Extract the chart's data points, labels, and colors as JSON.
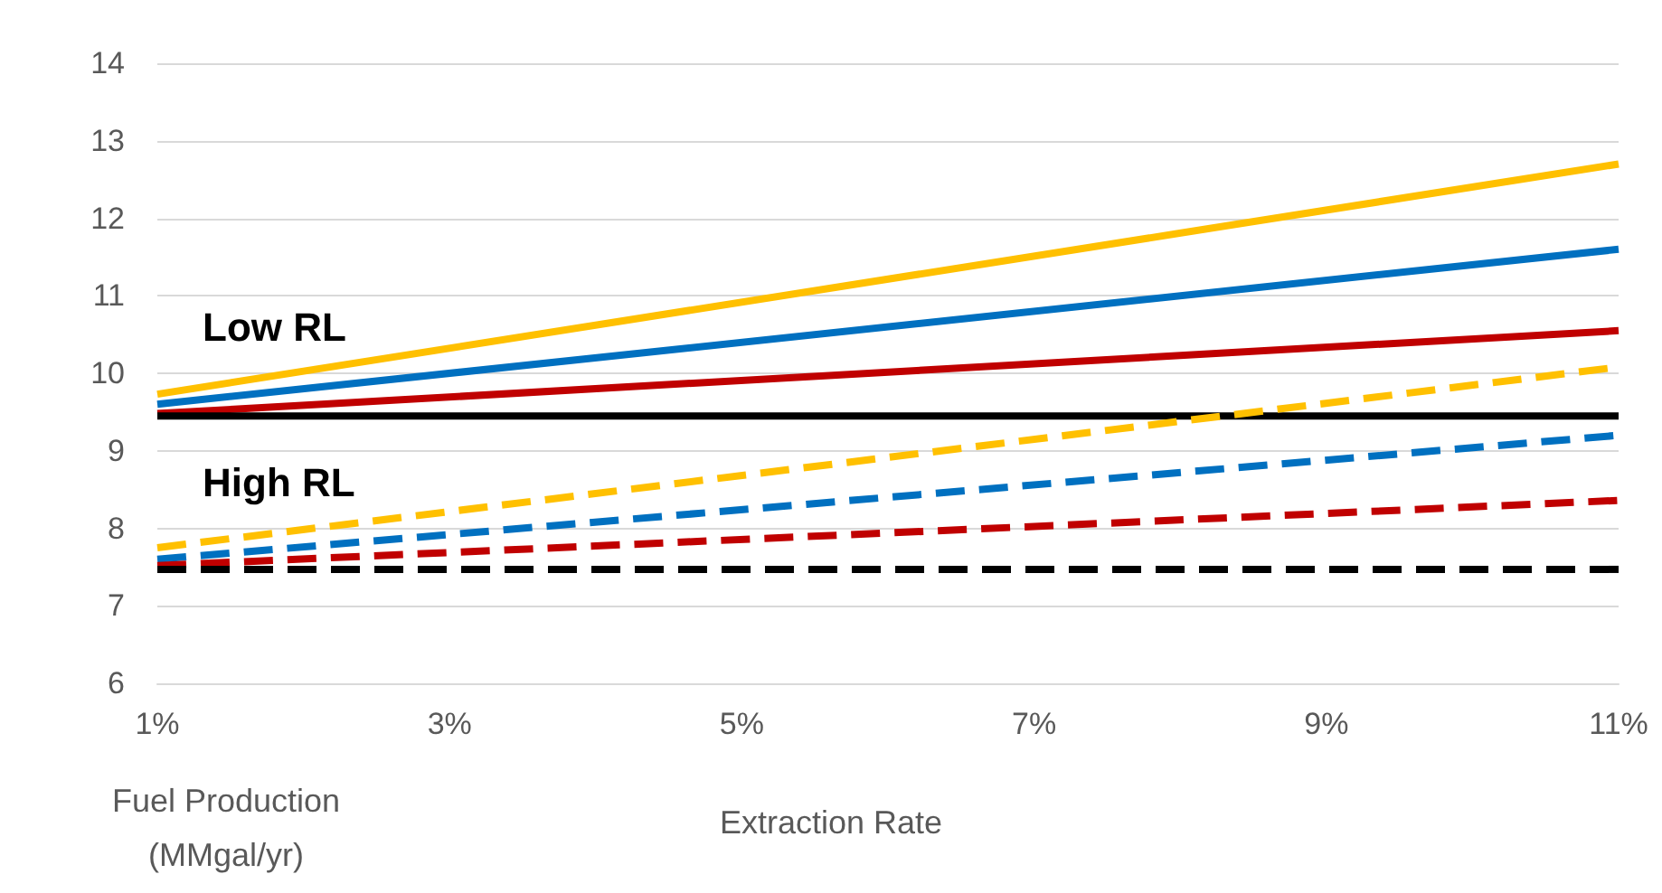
{
  "chart_data": {
    "type": "line",
    "xlabel": "Extraction Rate",
    "ylabel": "Fuel Production\n(MMgal/yr)",
    "x": [
      1,
      11
    ],
    "series": [
      {
        "color": "#ffc000",
        "values": [
          9.73,
          12.7
        ],
        "line_style": "solid"
      },
      {
        "color": "#0070c0",
        "values": [
          9.6,
          11.6
        ],
        "line_style": "solid"
      },
      {
        "color": "#c00000",
        "values": [
          9.48,
          10.55
        ],
        "line_style": "solid"
      },
      {
        "color": "#000000",
        "values": [
          9.45,
          9.45
        ],
        "line_style": "solid"
      },
      {
        "color": "#ffc000",
        "values": [
          7.75,
          10.08
        ],
        "line_style": "dashed"
      },
      {
        "color": "#0070c0",
        "values": [
          7.6,
          9.2
        ],
        "line_style": "dashed"
      },
      {
        "color": "#c00000",
        "values": [
          7.52,
          8.36
        ],
        "line_style": "dashed"
      },
      {
        "color": "#000000",
        "values": [
          7.47,
          7.47
        ],
        "line_style": "dashed"
      }
    ],
    "annotations": [
      "Low RL",
      "High RL"
    ],
    "xlim": [
      1,
      11
    ],
    "xticks": [
      {
        "value": 1,
        "label": "1%"
      },
      {
        "value": 3,
        "label": "3%"
      },
      {
        "value": 5,
        "label": "5%"
      },
      {
        "value": 7,
        "label": "7%"
      },
      {
        "value": 9,
        "label": "9%"
      },
      {
        "value": 11,
        "label": "11%"
      }
    ],
    "ylim": [
      6,
      14
    ],
    "yticks": [
      6,
      7,
      8,
      9,
      10,
      11,
      12,
      13,
      14
    ],
    "grid": "y",
    "marker": "none"
  }
}
